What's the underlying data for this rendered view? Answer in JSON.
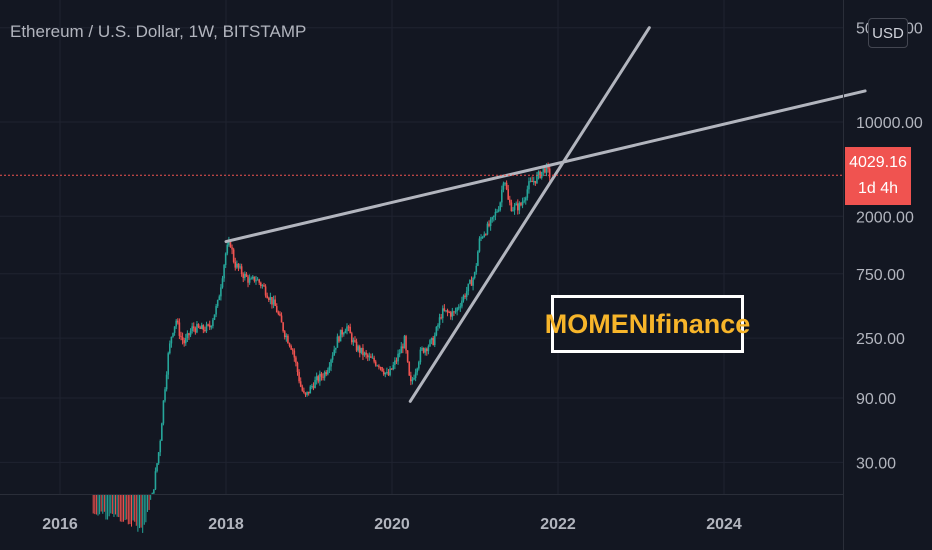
{
  "title": "Ethereum / U.S. Dollar, 1W, BITSTAMP",
  "currency_badge": "USD",
  "last_price": {
    "value": "4029.16",
    "countdown": "1d 4h",
    "color": "#f05350"
  },
  "watermark": {
    "text": "MOMENIfinance",
    "text_color": "#f7b52a",
    "border_color": "#ffffff"
  },
  "colors": {
    "background": "#131722",
    "up": "#26a69a",
    "down": "#ef5350",
    "trendline": "#b2b5be"
  },
  "chart_data": {
    "type": "line",
    "title": "Ethereum / U.S. Dollar, 1W, BITSTAMP",
    "y_scale": "log",
    "x_ticks": [
      "2016",
      "2018",
      "2020",
      "2022",
      "2024"
    ],
    "y_ticks": [
      "50000.00",
      "10000.00",
      "2000.00",
      "750.00",
      "250.00",
      "90.00",
      "30.00"
    ],
    "xlim": [
      2015.5,
      2025.7
    ],
    "ylim": [
      12,
      60000
    ],
    "series": [
      {
        "role": "weekly-close",
        "x": [
          2016.5,
          2017.0,
          2017.1,
          2017.2,
          2017.25,
          2017.3,
          2017.35,
          2017.4,
          2017.45,
          2017.5,
          2017.6,
          2017.7,
          2017.8,
          2017.9,
          2017.95,
          2018.0,
          2018.05,
          2018.1,
          2018.2,
          2018.3,
          2018.35,
          2018.45,
          2018.6,
          2018.7,
          2018.8,
          2018.9,
          2018.95,
          2019.05,
          2019.2,
          2019.35,
          2019.45,
          2019.55,
          2019.7,
          2019.85,
          2019.95,
          2020.05,
          2020.15,
          2020.22,
          2020.35,
          2020.5,
          2020.6,
          2020.75,
          2020.9,
          2021.0,
          2021.05,
          2021.1,
          2021.2,
          2021.3,
          2021.35,
          2021.4,
          2021.45,
          2021.55,
          2021.65,
          2021.75,
          2021.85,
          2021.9
        ],
        "y": [
          12,
          9,
          15,
          40,
          90,
          180,
          280,
          340,
          260,
          230,
          300,
          290,
          300,
          450,
          700,
          1100,
          1300,
          900,
          750,
          650,
          700,
          600,
          420,
          280,
          210,
          110,
          90,
          115,
          140,
          250,
          310,
          220,
          180,
          160,
          130,
          170,
          240,
          110,
          200,
          240,
          390,
          380,
          560,
          750,
          1300,
          1500,
          1800,
          2500,
          4100,
          2600,
          2300,
          2400,
          3400,
          3900,
          4600,
          4029
        ]
      }
    ],
    "trendlines": [
      {
        "from": [
          2018.0,
          1300
        ],
        "to": [
          2025.7,
          17000
        ]
      },
      {
        "from": [
          2020.22,
          85
        ],
        "to": [
          2023.1,
          50000
        ]
      }
    ],
    "last_value": 4029.16
  }
}
